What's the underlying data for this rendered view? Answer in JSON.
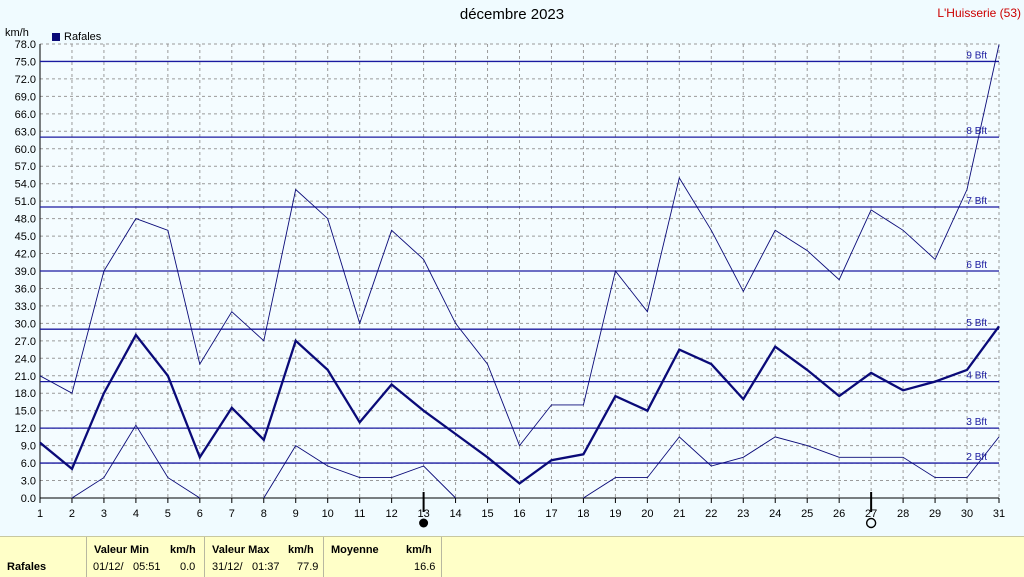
{
  "header": {
    "title": "décembre 2023",
    "location": "L'Huisserie (53)",
    "unit": "km/h"
  },
  "legend": {
    "label": "Rafales",
    "color": "#0a0a78"
  },
  "chart_data": {
    "type": "line",
    "title": "décembre 2023",
    "ylabel": "km/h",
    "ylim": [
      0,
      78
    ],
    "yticks": [
      "0.0",
      "3.0",
      "6.0",
      "9.0",
      "12.0",
      "15.0",
      "18.0",
      "21.0",
      "24.0",
      "27.0",
      "30.0",
      "33.0",
      "36.0",
      "39.0",
      "42.0",
      "45.0",
      "48.0",
      "51.0",
      "54.0",
      "57.0",
      "60.0",
      "63.0",
      "66.0",
      "69.0",
      "72.0",
      "75.0",
      "78.0"
    ],
    "x": [
      1,
      2,
      3,
      4,
      5,
      6,
      7,
      8,
      9,
      10,
      11,
      12,
      13,
      14,
      15,
      16,
      17,
      18,
      19,
      20,
      21,
      22,
      23,
      24,
      25,
      26,
      27,
      28,
      29,
      30,
      31
    ],
    "grid": true,
    "series": [
      {
        "name": "Rafales",
        "style": "bold",
        "values": [
          9.5,
          5.0,
          18.0,
          28.0,
          21.0,
          7.0,
          15.5,
          10.0,
          27.0,
          22.0,
          13.0,
          19.5,
          15.0,
          11.0,
          7.0,
          2.5,
          6.5,
          7.5,
          17.5,
          15.0,
          25.5,
          23.0,
          17.0,
          26.0,
          22.0,
          17.5,
          21.5,
          18.5,
          20.0,
          22.0,
          29.5
        ]
      },
      {
        "style": "thin-upper",
        "values": [
          21.0,
          18.0,
          39.0,
          48.0,
          46.0,
          23.0,
          32.0,
          27.0,
          53.0,
          48.0,
          30.0,
          46.0,
          41.0,
          30.0,
          23.0,
          9.0,
          16.0,
          16.0,
          39.0,
          32.0,
          55.0,
          46.0,
          35.5,
          46.0,
          42.5,
          37.5,
          49.5,
          46.0,
          41.0,
          53.0,
          77.9
        ]
      },
      {
        "style": "thin-lower",
        "values": [
          null,
          0.0,
          3.5,
          12.5,
          3.5,
          0.0,
          null,
          0.0,
          9.0,
          5.5,
          3.5,
          3.5,
          5.5,
          0.0,
          null,
          null,
          null,
          0.0,
          3.5,
          3.5,
          10.5,
          5.5,
          7.0,
          10.5,
          9.0,
          7.0,
          7.0,
          7.0,
          3.5,
          3.5,
          10.5
        ]
      }
    ],
    "beaufort": [
      {
        "label": "2 Bft",
        "value": 6
      },
      {
        "label": "3 Bft",
        "value": 12
      },
      {
        "label": "4 Bft",
        "value": 20
      },
      {
        "label": "5 Bft",
        "value": 29
      },
      {
        "label": "6 Bft",
        "value": 39
      },
      {
        "label": "7 Bft",
        "value": 50
      },
      {
        "label": "8 Bft",
        "value": 62
      },
      {
        "label": "9 Bft",
        "value": 75
      }
    ],
    "moon_phases": [
      {
        "day": 13,
        "phase": "new-moon"
      },
      {
        "day": 27,
        "phase": "full-moon"
      }
    ]
  },
  "footer": {
    "row_label": "Rafales",
    "min_header": "Valeur Min",
    "min_unit": "km/h",
    "min_date": "01/12/",
    "min_time": "05:51",
    "min_value": "0.0",
    "max_header": "Valeur Max",
    "max_unit": "km/h",
    "max_date": "31/12/",
    "max_time": "01:37",
    "max_value": "77.9",
    "avg_header": "Moyenne",
    "avg_unit": "km/h",
    "avg_value": "16.6"
  }
}
